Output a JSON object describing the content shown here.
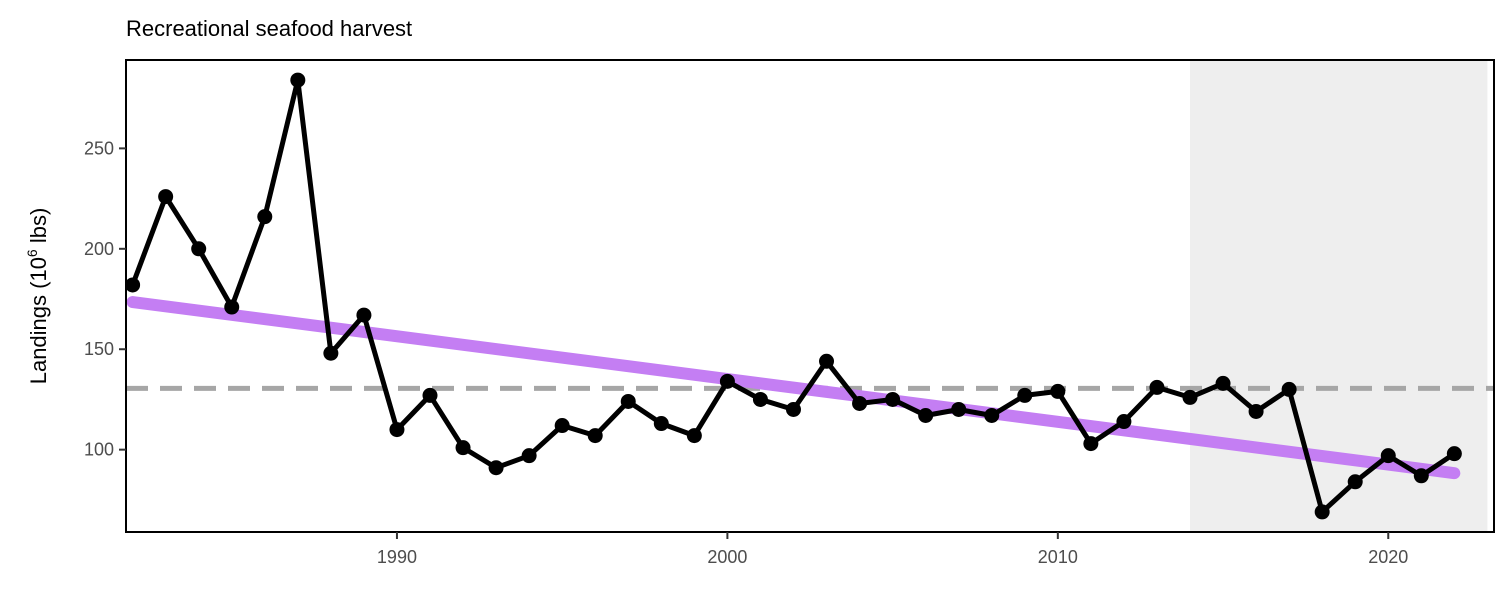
{
  "chart_data": {
    "type": "line",
    "title": "Recreational seafood harvest",
    "ylabel": {
      "prefix": "Landings (10",
      "superscript": "6",
      "suffix": " lbs)"
    },
    "xlabel": "",
    "xlim": [
      1981.8,
      2023.2
    ],
    "ylim": [
      59,
      294
    ],
    "x_ticks": [
      1990,
      2000,
      2010,
      2020
    ],
    "y_ticks": [
      100,
      150,
      200,
      250
    ],
    "grid": false,
    "series": [
      {
        "x": [
          1982,
          1983,
          1984,
          1985,
          1986,
          1987,
          1988,
          1989,
          1990,
          1991,
          1992,
          1993,
          1994,
          1995,
          1996,
          1997,
          1998,
          1999,
          2000,
          2001,
          2002,
          2003,
          2004,
          2005,
          2006,
          2007,
          2008,
          2009,
          2010,
          2011,
          2012,
          2013,
          2014,
          2015,
          2016,
          2017,
          2018,
          2019,
          2020,
          2021,
          2022
        ],
        "values": [
          182,
          226,
          200,
          171,
          216,
          284,
          148,
          167,
          110,
          127,
          101,
          91,
          97,
          112,
          107,
          124,
          113,
          107,
          134,
          125,
          120,
          144,
          123,
          125,
          117,
          120,
          117,
          127,
          129,
          103,
          114,
          131,
          126,
          133,
          119,
          130,
          69,
          84,
          97,
          87,
          98
        ],
        "color": "#000000"
      }
    ],
    "reference_line": {
      "y": 130.5,
      "style": "dashed",
      "color": "#a6a6a6"
    },
    "trend_line": {
      "x": [
        1982,
        2022
      ],
      "values": [
        173.5,
        88.3
      ],
      "color": "#c47ef3"
    },
    "shaded_region": {
      "x": [
        2014,
        2023
      ],
      "color": "#eeeeee"
    }
  }
}
